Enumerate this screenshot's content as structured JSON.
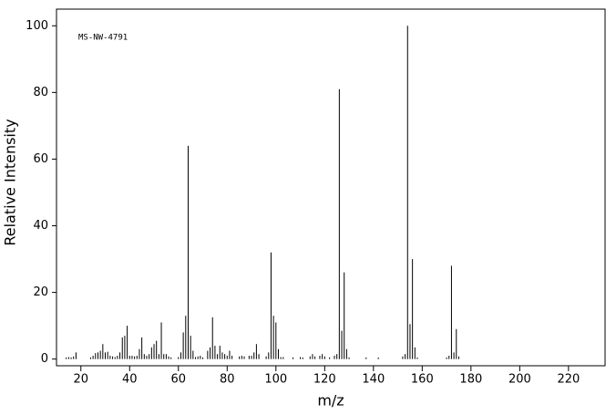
{
  "chart_data": {
    "type": "stem",
    "annotation": "MS-NW-4791",
    "xlabel": "m/z",
    "ylabel": "Relative Intensity",
    "xlim": [
      10,
      235
    ],
    "ylim": [
      -2,
      105
    ],
    "xticks": [
      20,
      40,
      60,
      80,
      100,
      120,
      140,
      160,
      180,
      200,
      220
    ],
    "yticks": [
      0,
      20,
      40,
      60,
      80,
      100
    ],
    "color": "#000000",
    "x": [
      14,
      15,
      16,
      17,
      18,
      24,
      25,
      26,
      27,
      28,
      29,
      30,
      31,
      32,
      33,
      34,
      35,
      36,
      37,
      38,
      39,
      40,
      41,
      42,
      43,
      44,
      45,
      46,
      47,
      48,
      49,
      50,
      51,
      52,
      53,
      54,
      55,
      56,
      57,
      60,
      61,
      62,
      63,
      64,
      65,
      66,
      67,
      68,
      69,
      70,
      72,
      73,
      74,
      75,
      76,
      77,
      78,
      79,
      80,
      81,
      82,
      85,
      86,
      87,
      89,
      90,
      91,
      92,
      93,
      96,
      97,
      98,
      99,
      100,
      101,
      102,
      103,
      107,
      110,
      111,
      114,
      115,
      116,
      118,
      119,
      120,
      122,
      124,
      125,
      126,
      127,
      128,
      129,
      130,
      137,
      142,
      152,
      153,
      154,
      155,
      156,
      157,
      158,
      170,
      171,
      172,
      173,
      174,
      175
    ],
    "values": [
      0.5,
      0.6,
      0.5,
      0.8,
      2,
      0.5,
      1,
      1.8,
      2,
      2.5,
      4.5,
      2,
      2.2,
      1,
      0.8,
      0.6,
      1,
      2,
      6.5,
      7,
      10,
      1,
      1,
      0.8,
      1,
      3,
      6.5,
      1.5,
      1,
      1.5,
      3.5,
      4.5,
      5.5,
      1.5,
      11,
      1.5,
      1.5,
      0.8,
      0.5,
      0.6,
      2,
      8,
      13,
      64,
      7,
      2.5,
      0.6,
      0.8,
      1,
      0.5,
      2.5,
      3.5,
      12.5,
      4,
      1.5,
      4,
      2,
      1.5,
      1,
      2.5,
      1,
      0.8,
      1,
      0.8,
      1,
      1,
      2,
      4.5,
      1.5,
      0.8,
      2,
      32,
      13,
      11,
      3,
      0.6,
      0.6,
      0.5,
      0.6,
      0.5,
      0.8,
      1.5,
      0.8,
      1,
      1.5,
      0.8,
      0.5,
      1,
      1.5,
      81,
      8.5,
      26,
      3,
      0.5,
      0.5,
      0.5,
      0.8,
      1.5,
      100,
      10.5,
      30,
      3.5,
      0.5,
      0.5,
      1,
      28,
      2,
      9,
      0.8
    ]
  }
}
